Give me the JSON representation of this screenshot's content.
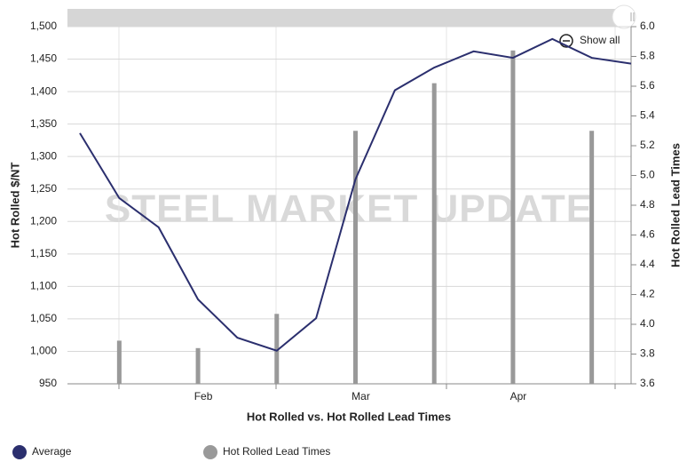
{
  "chart_data": {
    "type": "combo",
    "title": "Hot Rolled vs. Hot Rolled Lead Times",
    "watermark": "STEEL MARKET UPDATE",
    "y_label": "Hot Rolled $/NT",
    "y2_label": "Hot Rolled Lead Times",
    "show_all": "Show all",
    "categories": [
      null,
      null,
      null,
      "Feb",
      null,
      null,
      null,
      "Mar",
      null,
      null,
      null,
      "Apr",
      null,
      null,
      null
    ],
    "series": [
      {
        "name": "Average",
        "type": "line",
        "color": "#2b2f6e",
        "values": [
          1336,
          1236,
          1191,
          1080,
          1021,
          1001,
          1051,
          1265,
          1402,
          1437,
          1462,
          1452,
          1481,
          1452,
          1443
        ]
      },
      {
        "name": "Hot Rolled Lead Times",
        "type": "bar",
        "axis": "y2",
        "color": "#999999",
        "values": [
          null,
          3.89,
          null,
          3.84,
          null,
          4.07,
          null,
          5.3,
          null,
          5.62,
          null,
          5.84,
          null,
          5.3,
          null
        ]
      }
    ],
    "ylim": [
      950,
      1500
    ],
    "yticks": [
      950,
      {
        "value": 1000,
        "label": "1,000"
      },
      {
        "value": 1050,
        "label": "1,050"
      },
      {
        "value": 1100,
        "label": "1,100"
      },
      {
        "value": 1150,
        "label": "1,150"
      },
      {
        "value": 1200,
        "label": "1,200"
      },
      {
        "value": 1250,
        "label": "1,250"
      },
      {
        "value": 1300,
        "label": "1,300"
      },
      {
        "value": 1350,
        "label": "1,350"
      },
      {
        "value": 1400,
        "label": "1,400"
      },
      {
        "value": 1450,
        "label": "1,450"
      },
      {
        "value": 1500,
        "label": "1,500"
      }
    ],
    "y2lim": [
      3.6,
      6.0
    ],
    "y2ticks": [
      3.6,
      3.8,
      {
        "value": 4,
        "label": "4.0"
      },
      4.2,
      4.4,
      4.6,
      4.8,
      {
        "value": 5,
        "label": "5.0"
      },
      5.2,
      5.4,
      5.6,
      5.8,
      {
        "value": 6,
        "label": "6.0"
      }
    ],
    "grid": true
  }
}
